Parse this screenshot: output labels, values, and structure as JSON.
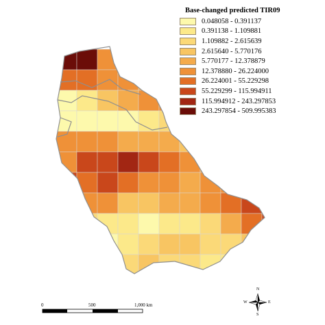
{
  "legend": {
    "title": "Base-changed predicted TIR09",
    "classes": [
      {
        "label": "0.048058 - 0.391137",
        "color": "#fdf9ac"
      },
      {
        "label": "0.391138 - 1.109881",
        "color": "#fce98a"
      },
      {
        "label": "1.109882 - 2.615639",
        "color": "#fbd978"
      },
      {
        "label": "2.615640 - 5.770176",
        "color": "#f8c562"
      },
      {
        "label": "5.770177 - 12.378879",
        "color": "#f4ab4c"
      },
      {
        "label": "12.378880 - 26.224000",
        "color": "#ef9138"
      },
      {
        "label": "26.224001 - 55.229298",
        "color": "#e36f25"
      },
      {
        "label": "55.229299 - 115.994911",
        "color": "#c9471b"
      },
      {
        "label": "115.994912 - 243.297853",
        "color": "#a22613"
      },
      {
        "label": "243.297854 - 509.995383",
        "color": "#6b0d08"
      }
    ]
  },
  "scalebar": {
    "labels": [
      "0",
      "500",
      "1,000 km"
    ]
  },
  "compass": {
    "n": "N",
    "s": "S",
    "e": "E",
    "w": "W"
  },
  "grid": {
    "origin_col": 82,
    "origin_row": 72,
    "cell": 30,
    "cells": [
      [
        0,
        0,
        9
      ],
      [
        1,
        0,
        9
      ],
      [
        2,
        0,
        5
      ],
      [
        3,
        0,
        4
      ],
      [
        4,
        0,
        1
      ],
      [
        0,
        1,
        6
      ],
      [
        1,
        1,
        6
      ],
      [
        2,
        1,
        5
      ],
      [
        3,
        1,
        5
      ],
      [
        4,
        1,
        4
      ],
      [
        5,
        1,
        4
      ],
      [
        6,
        1,
        3
      ],
      [
        0,
        2,
        0
      ],
      [
        1,
        2,
        1
      ],
      [
        2,
        2,
        3
      ],
      [
        3,
        2,
        4
      ],
      [
        4,
        2,
        5
      ],
      [
        5,
        2,
        5
      ],
      [
        6,
        2,
        5
      ],
      [
        7,
        2,
        3
      ],
      [
        0,
        3,
        0
      ],
      [
        1,
        3,
        0
      ],
      [
        2,
        3,
        0
      ],
      [
        3,
        3,
        0
      ],
      [
        4,
        3,
        1
      ],
      [
        5,
        3,
        2
      ],
      [
        6,
        3,
        2
      ],
      [
        7,
        3,
        2
      ],
      [
        8,
        3,
        2
      ],
      [
        9,
        3,
        1
      ],
      [
        0,
        4,
        5
      ],
      [
        1,
        4,
        5
      ],
      [
        2,
        4,
        5
      ],
      [
        3,
        4,
        4
      ],
      [
        4,
        4,
        4
      ],
      [
        5,
        4,
        4
      ],
      [
        6,
        4,
        3
      ],
      [
        7,
        4,
        3
      ],
      [
        8,
        4,
        2
      ],
      [
        9,
        4,
        2
      ],
      [
        0,
        5,
        5
      ],
      [
        1,
        5,
        7
      ],
      [
        2,
        5,
        7
      ],
      [
        3,
        5,
        8
      ],
      [
        4,
        5,
        7
      ],
      [
        5,
        5,
        6
      ],
      [
        6,
        5,
        5
      ],
      [
        7,
        5,
        4
      ],
      [
        8,
        5,
        3
      ],
      [
        9,
        5,
        3
      ],
      [
        0,
        6,
        7
      ],
      [
        1,
        6,
        6
      ],
      [
        2,
        6,
        7
      ],
      [
        3,
        6,
        6
      ],
      [
        4,
        6,
        5
      ],
      [
        5,
        6,
        5
      ],
      [
        6,
        6,
        4
      ],
      [
        7,
        6,
        5
      ],
      [
        8,
        6,
        5
      ],
      [
        9,
        6,
        5
      ],
      [
        10,
        6,
        3
      ],
      [
        1,
        7,
        5
      ],
      [
        2,
        7,
        5
      ],
      [
        3,
        7,
        3
      ],
      [
        4,
        7,
        3
      ],
      [
        5,
        7,
        4
      ],
      [
        6,
        7,
        4
      ],
      [
        7,
        7,
        5
      ],
      [
        8,
        7,
        6
      ],
      [
        9,
        7,
        7
      ],
      [
        10,
        7,
        6
      ],
      [
        11,
        7,
        3
      ],
      [
        1,
        8,
        2
      ],
      [
        2,
        8,
        1
      ],
      [
        3,
        8,
        1
      ],
      [
        4,
        8,
        0
      ],
      [
        5,
        8,
        1
      ],
      [
        6,
        8,
        1
      ],
      [
        7,
        8,
        2
      ],
      [
        8,
        8,
        4
      ],
      [
        9,
        8,
        6
      ],
      [
        10,
        8,
        7
      ],
      [
        11,
        8,
        7
      ],
      [
        12,
        8,
        6
      ],
      [
        13,
        8,
        5
      ],
      [
        1,
        9,
        0
      ],
      [
        2,
        9,
        0
      ],
      [
        3,
        9,
        1
      ],
      [
        4,
        9,
        2
      ],
      [
        5,
        9,
        3
      ],
      [
        6,
        9,
        3
      ],
      [
        7,
        9,
        2
      ],
      [
        8,
        9,
        2
      ],
      [
        9,
        9,
        3
      ],
      [
        10,
        9,
        4
      ],
      [
        11,
        9,
        6
      ],
      [
        12,
        9,
        5
      ],
      [
        13,
        9,
        4
      ],
      [
        2,
        10,
        1
      ],
      [
        3,
        10,
        2
      ],
      [
        4,
        10,
        3
      ],
      [
        5,
        10,
        2
      ],
      [
        6,
        10,
        2
      ],
      [
        7,
        10,
        1
      ],
      [
        8,
        10,
        1
      ],
      [
        9,
        10,
        1
      ],
      [
        10,
        10,
        2
      ],
      [
        11,
        10,
        3
      ],
      [
        3,
        11,
        2
      ],
      [
        4,
        11,
        2
      ],
      [
        5,
        11,
        1
      ],
      [
        6,
        11,
        1
      ],
      [
        7,
        11,
        0
      ],
      [
        8,
        11,
        0
      ],
      [
        9,
        11,
        0
      ],
      [
        3,
        12,
        1
      ],
      [
        4,
        12,
        1
      ],
      [
        5,
        12,
        0
      ],
      [
        6,
        12,
        0
      ],
      [
        7,
        12,
        0
      ],
      [
        3,
        13,
        2
      ],
      [
        4,
        13,
        1
      ],
      [
        5,
        13,
        0
      ]
    ]
  }
}
